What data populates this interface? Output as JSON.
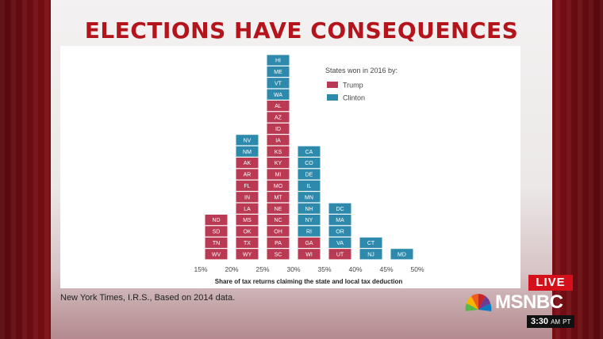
{
  "headline": "ELECTIONS HAVE CONSEQUENCES",
  "source": "New York Times, I.R.S., Based on 2014 data.",
  "live_badge": "LIVE",
  "network": "MSNBC",
  "clock": {
    "time": "3:30",
    "ampm": "AM",
    "tz": "PT"
  },
  "colors": {
    "trump": "#b93a52",
    "clinton": "#2e8aac",
    "headline": "#b4151c"
  },
  "chart_data": {
    "type": "bar",
    "xlabel": "Share of tax returns claiming the state and local tax deduction",
    "x_ticks": [
      "15%",
      "20%",
      "25%",
      "30%",
      "35%",
      "40%",
      "45%",
      "50%"
    ],
    "legend": {
      "title": "States won in 2016 by:",
      "placement": "top-right",
      "items": [
        {
          "name": "Trump",
          "party": "trump"
        },
        {
          "name": "Clinton",
          "party": "clinton"
        }
      ]
    },
    "bins": [
      {
        "range": [
          15,
          20
        ],
        "states": [
          {
            "code": "ND",
            "party": "trump"
          },
          {
            "code": "SD",
            "party": "trump"
          },
          {
            "code": "TN",
            "party": "trump"
          },
          {
            "code": "WV",
            "party": "trump"
          }
        ]
      },
      {
        "range": [
          20,
          25
        ],
        "states": [
          {
            "code": "NV",
            "party": "clinton"
          },
          {
            "code": "NM",
            "party": "clinton"
          },
          {
            "code": "AK",
            "party": "trump"
          },
          {
            "code": "AR",
            "party": "trump"
          },
          {
            "code": "FL",
            "party": "trump"
          },
          {
            "code": "IN",
            "party": "trump"
          },
          {
            "code": "LA",
            "party": "trump"
          },
          {
            "code": "MS",
            "party": "trump"
          },
          {
            "code": "OK",
            "party": "trump"
          },
          {
            "code": "TX",
            "party": "trump"
          },
          {
            "code": "WY",
            "party": "trump"
          }
        ]
      },
      {
        "range": [
          25,
          30
        ],
        "states": [
          {
            "code": "HI",
            "party": "clinton"
          },
          {
            "code": "ME",
            "party": "clinton"
          },
          {
            "code": "VT",
            "party": "clinton"
          },
          {
            "code": "WA",
            "party": "clinton"
          },
          {
            "code": "AL",
            "party": "trump"
          },
          {
            "code": "AZ",
            "party": "trump"
          },
          {
            "code": "ID",
            "party": "trump"
          },
          {
            "code": "IA",
            "party": "trump"
          },
          {
            "code": "KS",
            "party": "trump"
          },
          {
            "code": "KY",
            "party": "trump"
          },
          {
            "code": "MI",
            "party": "trump"
          },
          {
            "code": "MO",
            "party": "trump"
          },
          {
            "code": "MT",
            "party": "trump"
          },
          {
            "code": "NE",
            "party": "trump"
          },
          {
            "code": "NC",
            "party": "trump"
          },
          {
            "code": "OH",
            "party": "trump"
          },
          {
            "code": "PA",
            "party": "trump"
          },
          {
            "code": "SC",
            "party": "trump"
          }
        ]
      },
      {
        "range": [
          30,
          35
        ],
        "states": [
          {
            "code": "CA",
            "party": "clinton"
          },
          {
            "code": "CO",
            "party": "clinton"
          },
          {
            "code": "DE",
            "party": "clinton"
          },
          {
            "code": "IL",
            "party": "clinton"
          },
          {
            "code": "MN",
            "party": "clinton"
          },
          {
            "code": "NH",
            "party": "clinton"
          },
          {
            "code": "NY",
            "party": "clinton"
          },
          {
            "code": "RI",
            "party": "clinton"
          },
          {
            "code": "GA",
            "party": "trump"
          },
          {
            "code": "WI",
            "party": "trump"
          }
        ]
      },
      {
        "range": [
          35,
          40
        ],
        "states": [
          {
            "code": "DC",
            "party": "clinton"
          },
          {
            "code": "MA",
            "party": "clinton"
          },
          {
            "code": "OR",
            "party": "clinton"
          },
          {
            "code": "VA",
            "party": "clinton"
          },
          {
            "code": "UT",
            "party": "trump"
          }
        ]
      },
      {
        "range": [
          40,
          45
        ],
        "states": [
          {
            "code": "CT",
            "party": "clinton"
          },
          {
            "code": "NJ",
            "party": "clinton"
          }
        ]
      },
      {
        "range": [
          45,
          50
        ],
        "states": [
          {
            "code": "MD",
            "party": "clinton"
          }
        ]
      }
    ]
  }
}
